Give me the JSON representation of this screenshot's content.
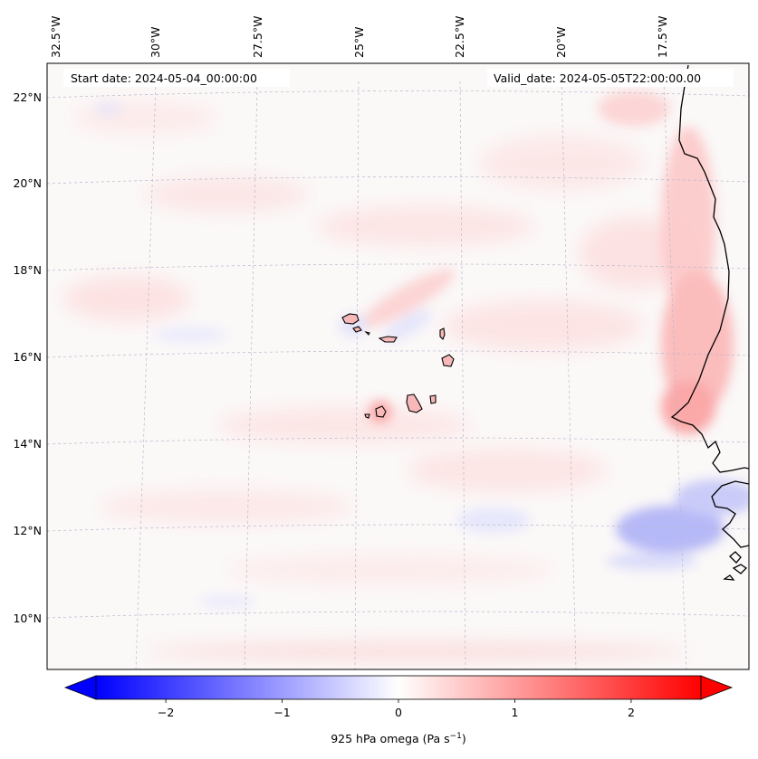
{
  "map": {
    "start_date_label": "Start date: 2024-05-04_00:00:00",
    "valid_date_label": "Valid_date: 2024-05-05T22:00:00.00",
    "lon_labels": [
      "32.5°W",
      "30°W",
      "27.5°W",
      "25°W",
      "22.5°W",
      "20°W",
      "17.5°W"
    ],
    "lat_labels": [
      "22°N",
      "20°N",
      "18°N",
      "16°N",
      "14°N",
      "12°N",
      "10°N"
    ],
    "land_label": "West African coast (Senegal / Gambia / Guinea-Bissau)",
    "islands_label": "Cape Verde islands",
    "colors": {
      "positive": "#ff0000",
      "negative": "#0000ff",
      "neutral": "#ffffff",
      "coastline": "#000000",
      "gridline": "#b0b0c8"
    }
  },
  "colorbar": {
    "label_prefix": "925 hPa omega (Pa s",
    "label_exponent": "−1",
    "label_suffix": ")",
    "min": -2.6,
    "max": 2.6,
    "ticks": [
      {
        "value": -2,
        "label": "−2"
      },
      {
        "value": -1,
        "label": "−1"
      },
      {
        "value": 0,
        "label": "0"
      },
      {
        "value": 1,
        "label": "1"
      },
      {
        "value": 2,
        "label": "2"
      }
    ],
    "extend": "both"
  },
  "chart_data": {
    "type": "heatmap",
    "title": "",
    "variable": "925 hPa omega",
    "units": "Pa s^-1",
    "value_range": [
      -2.6,
      2.6
    ],
    "lon_ticks": [
      "32.5°W",
      "30°W",
      "27.5°W",
      "25°W",
      "22.5°W",
      "20°W",
      "17.5°W"
    ],
    "lat_ticks": [
      "22°N",
      "20°N",
      "18°N",
      "16°N",
      "14°N",
      "12°N",
      "10°N"
    ],
    "notable_features": {
      "descent_coast": 1.1,
      "ascent_south_coast": -1.3,
      "cape_verde_max": 0.9
    }
  }
}
